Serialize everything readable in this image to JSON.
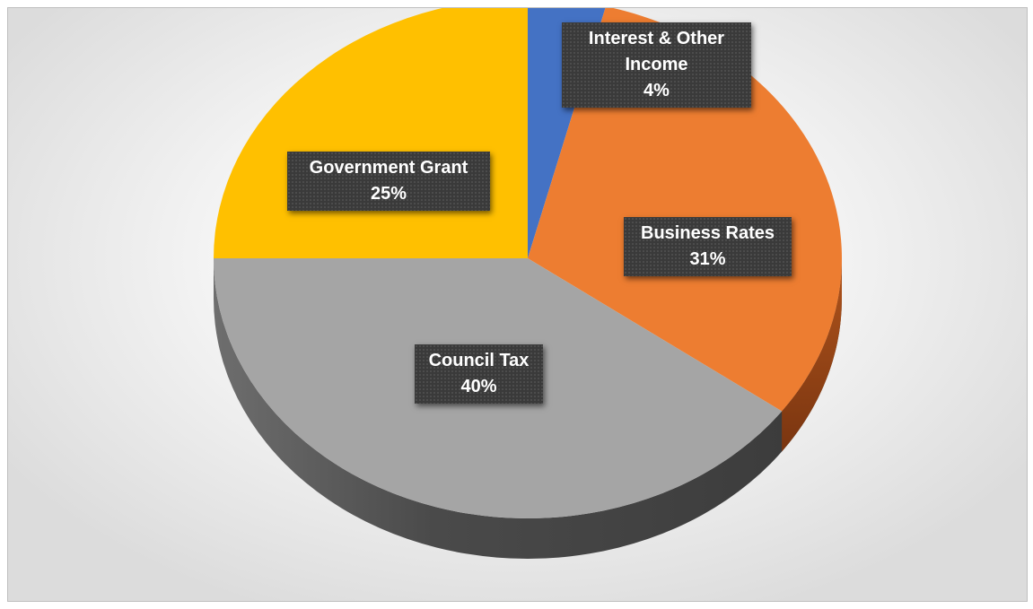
{
  "chart_data": {
    "type": "pie",
    "style": "3d",
    "title": "",
    "categories": [
      "Interest & Other Income",
      "Business Rates",
      "Council Tax",
      "Government Grant"
    ],
    "values": [
      4,
      31,
      40,
      25
    ],
    "value_labels": [
      "4%",
      "31%",
      "40%",
      "25%"
    ],
    "unit": "%",
    "colors": [
      "#4472c4",
      "#ed7d31",
      "#a5a5a5",
      "#ffc000"
    ],
    "labels": [
      {
        "name": "Interest & Other",
        "name2": "Income",
        "value": "4%"
      },
      {
        "name": "Business Rates",
        "value": "31%"
      },
      {
        "name": "Council Tax",
        "value": "40%"
      },
      {
        "name": "Government Grant",
        "value": "25%"
      }
    ],
    "legend": "none"
  }
}
